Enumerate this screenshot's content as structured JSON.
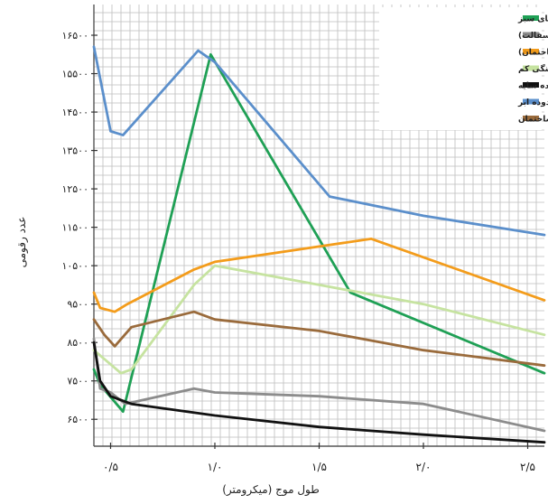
{
  "chart_data": {
    "type": "line",
    "xlabel": "طول موج (میکرومتر)",
    "ylabel": "عدد رقومی",
    "xlim": [
      0.42,
      2.58
    ],
    "ylim": [
      5800,
      17300
    ],
    "x_ticks": [
      {
        "value": 0.5,
        "label": "۰/۵"
      },
      {
        "value": 1.0,
        "label": "۱/۰"
      },
      {
        "value": 1.5,
        "label": "۱/۵"
      },
      {
        "value": 2.0,
        "label": "۲/۰"
      },
      {
        "value": 2.5,
        "label": "۲/۵"
      }
    ],
    "y_ticks": [
      {
        "value": 6500,
        "label": "۶۵۰۰"
      },
      {
        "value": 7500,
        "label": "۷۵۰۰"
      },
      {
        "value": 8500,
        "label": "۸۵۰۰"
      },
      {
        "value": 9500,
        "label": "۹۵۰۰"
      },
      {
        "value": 10500,
        "label": "۱۰۵۰۰"
      },
      {
        "value": 11500,
        "label": "۱۱۵۰۰"
      },
      {
        "value": 12500,
        "label": "۱۲۵۰۰"
      },
      {
        "value": 13500,
        "label": "۱۳۵۰۰"
      },
      {
        "value": 14500,
        "label": "۱۴۵۰۰"
      },
      {
        "value": 15500,
        "label": "۱۵۵۰۰"
      },
      {
        "value": 16500,
        "label": "۱۶۵۰۰"
      }
    ],
    "grid": true,
    "legend_position": "top-right",
    "series": [
      {
        "name": "محدوده فضای سبز",
        "color": "#1fa055",
        "x": [
          0.42,
          0.45,
          0.56,
          0.98,
          1.65,
          2.58
        ],
        "y": [
          7800,
          7400,
          6700,
          16000,
          9800,
          7700
        ]
      },
      {
        "name": "محدوده اتوبان (آسفالت)",
        "color": "#8c8c8c",
        "x": [
          0.42,
          0.45,
          0.5,
          0.57,
          0.9,
          1.0,
          1.5,
          2.0,
          2.58
        ],
        "y": [
          8600,
          7300,
          7200,
          6900,
          7300,
          7200,
          7100,
          6900,
          6200
        ]
      },
      {
        "name": "محدوده مسکونی (ساختمان)",
        "color": "#f39c1b",
        "x": [
          0.42,
          0.45,
          0.52,
          0.58,
          0.9,
          1.0,
          1.5,
          1.75,
          2.58
        ],
        "y": [
          9800,
          9400,
          9300,
          9500,
          10400,
          10600,
          11000,
          11200,
          9600
        ]
      },
      {
        "name": "پوشش سبزینگی کم",
        "color": "#c6e3a0",
        "x": [
          0.42,
          0.55,
          0.6,
          0.9,
          1.0,
          1.5,
          2.0,
          2.58
        ],
        "y": [
          8300,
          7700,
          7800,
          10000,
          10500,
          10000,
          9500,
          8700
        ]
      },
      {
        "name": "محدوده سایه",
        "color": "#111111",
        "x": [
          0.42,
          0.45,
          0.5,
          0.6,
          1.0,
          1.5,
          2.0,
          2.58
        ],
        "y": [
          8500,
          7500,
          7100,
          6900,
          6600,
          6300,
          6100,
          5900
        ]
      },
      {
        "name": "محدوده ابر",
        "color": "#5b8fcb",
        "x": [
          0.42,
          0.5,
          0.56,
          0.92,
          1.0,
          1.55,
          2.0,
          2.58
        ],
        "y": [
          16200,
          14000,
          13900,
          16100,
          15800,
          12300,
          11800,
          11300
        ]
      },
      {
        "name": "محدوده مختلط زمین لخت + ساختمان",
        "color": "#9a6b3c",
        "x": [
          0.42,
          0.47,
          0.52,
          0.6,
          0.9,
          1.0,
          1.5,
          2.0,
          2.58
        ],
        "y": [
          9100,
          8700,
          8400,
          8900,
          9300,
          9100,
          8800,
          8300,
          7900
        ]
      }
    ]
  }
}
